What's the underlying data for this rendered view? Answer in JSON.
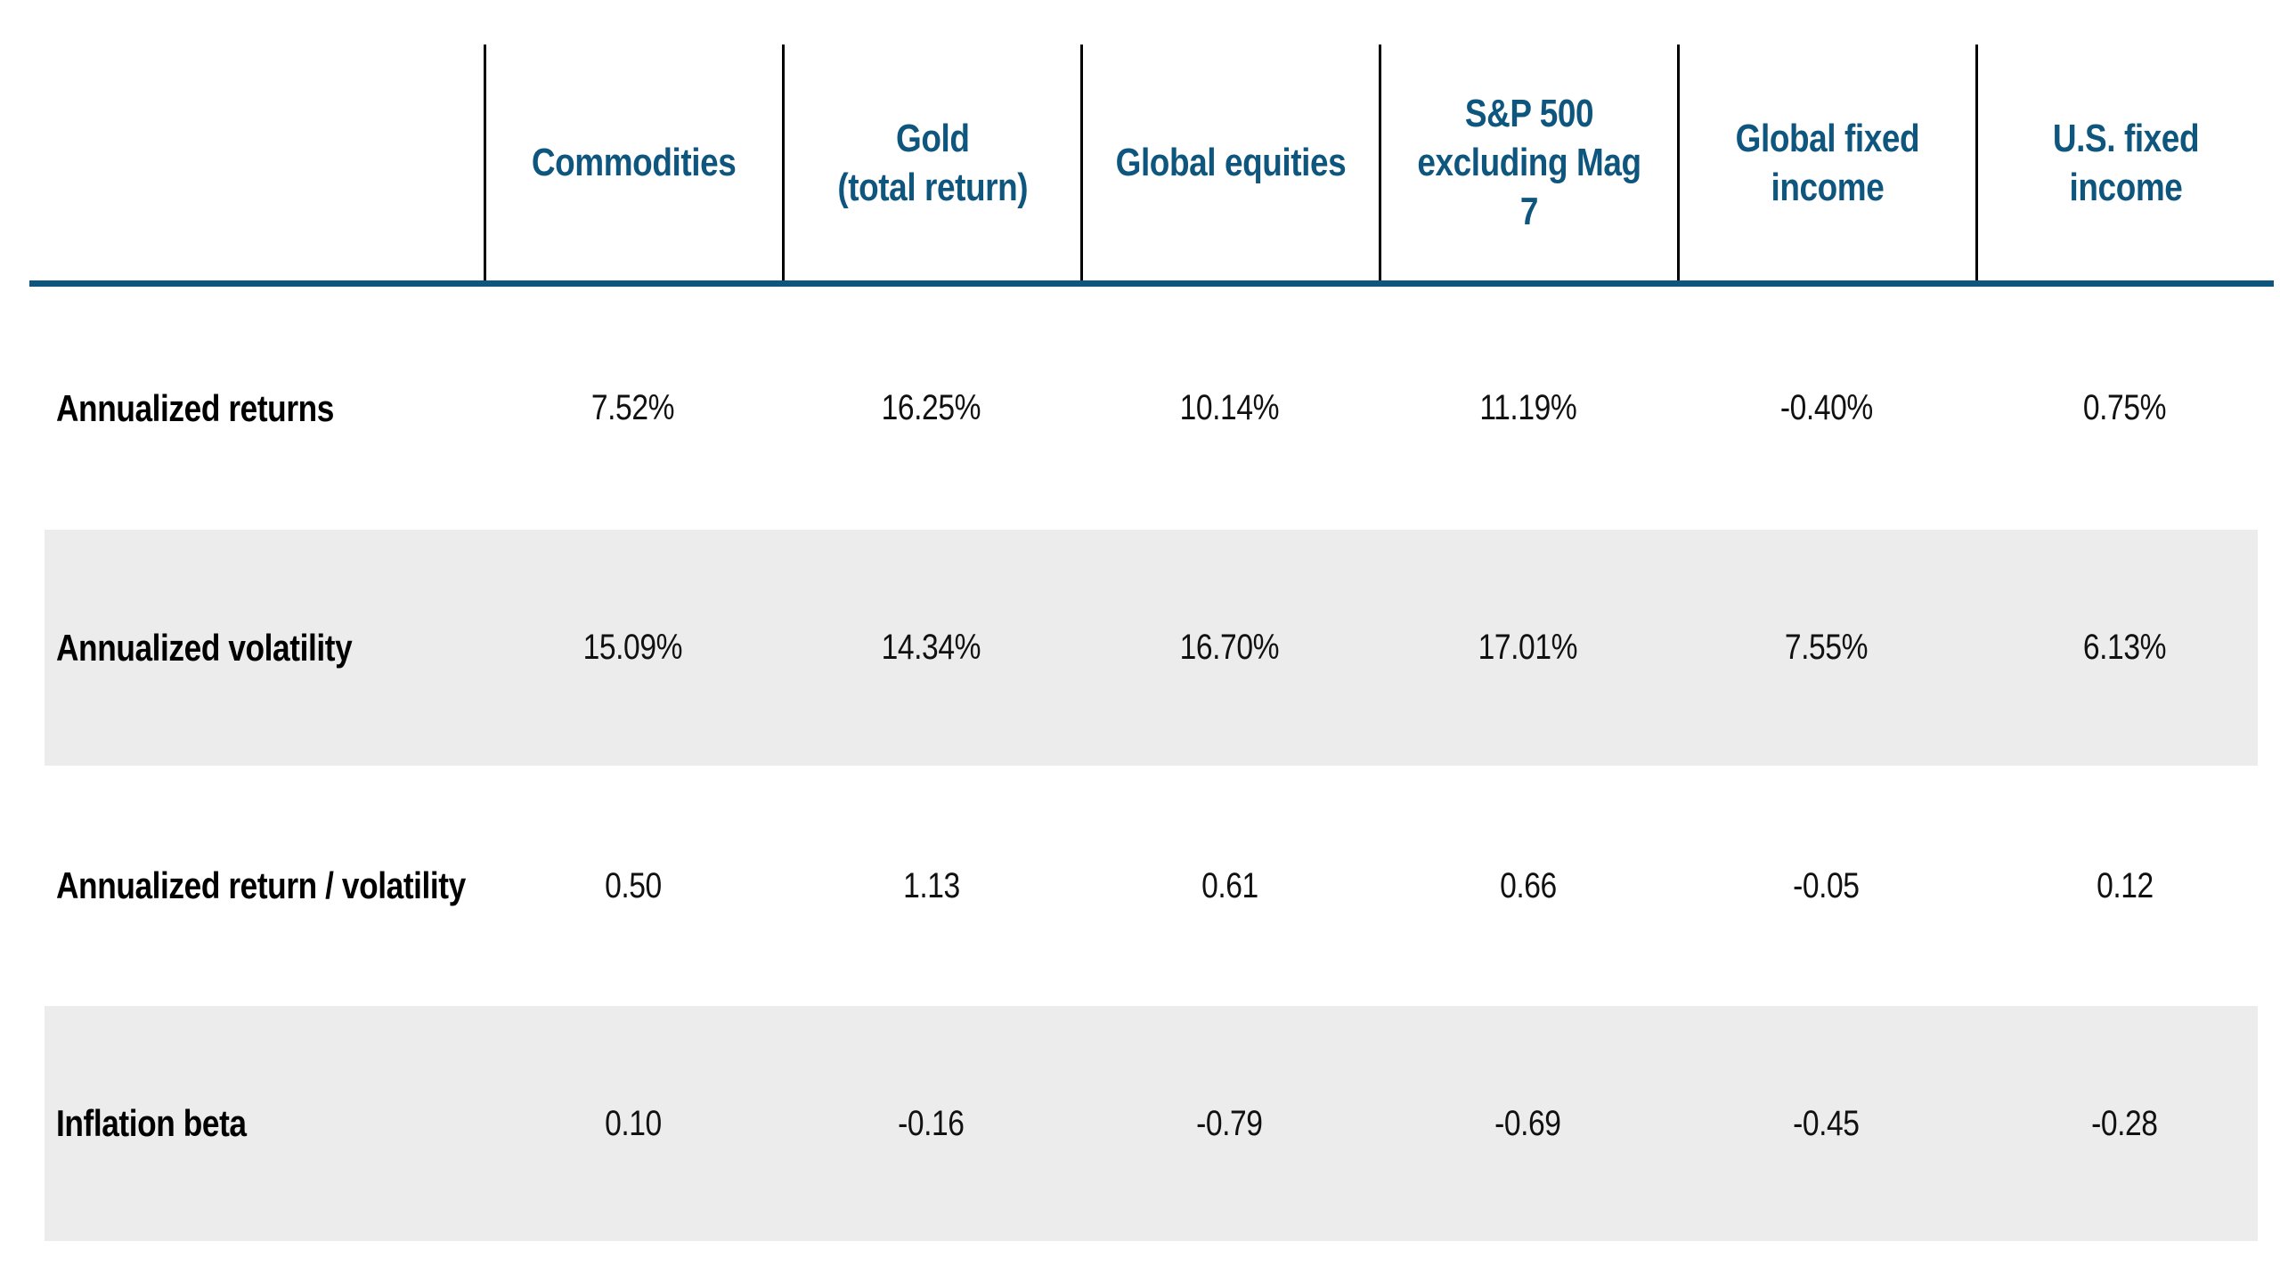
{
  "colors": {
    "accent_blue": "#0F567E",
    "shaded_row": "#ECECEC",
    "column_divider": "#000000",
    "label_text": "#000000",
    "value_text": "#111111",
    "background": "#FFFFFF"
  },
  "chart_data": {
    "type": "table",
    "columns": [
      "Commodities",
      "Gold\n(total return)",
      "Global equities",
      "S&P 500\nexcluding Mag 7",
      "Global fixed\nincome",
      "U.S. fixed income"
    ],
    "rows": [
      {
        "label": "Annualized returns",
        "values": [
          "7.52%",
          "16.25%",
          "10.14%",
          "11.19%",
          "-0.40%",
          "0.75%"
        ]
      },
      {
        "label": "Annualized volatility",
        "values": [
          "15.09%",
          "14.34%",
          "16.70%",
          "17.01%",
          "7.55%",
          "6.13%"
        ]
      },
      {
        "label": "Annualized return / volatility",
        "values": [
          "0.50",
          "1.13",
          "0.61",
          "0.66",
          "-0.05",
          "0.12"
        ]
      },
      {
        "label": "Inflation beta",
        "values": [
          "0.10",
          "-0.16",
          "-0.79",
          "-0.69",
          "-0.45",
          "-0.28"
        ]
      }
    ],
    "layout_hints": {
      "shaded_row_indices": [
        1,
        3
      ],
      "header_divider": "thick blue rule under header",
      "gridlines": "vertical black dividers between header columns only",
      "legend": "none",
      "title": "none visible"
    }
  }
}
